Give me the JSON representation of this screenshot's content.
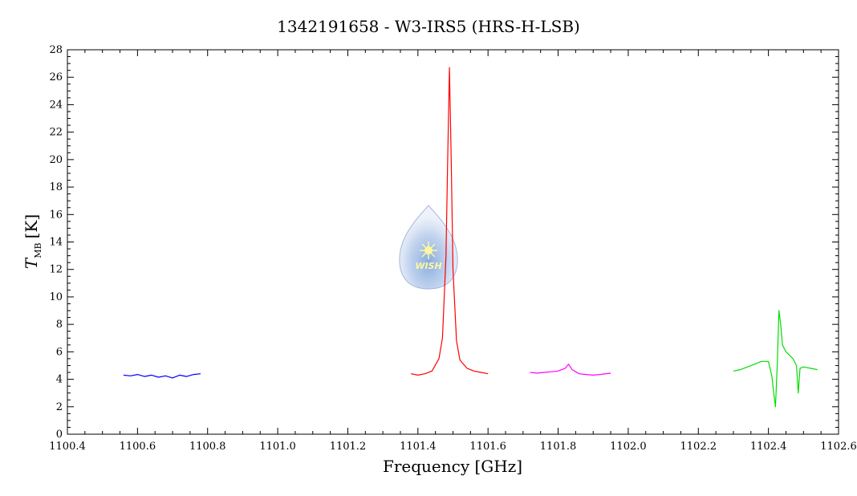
{
  "chart_data": {
    "type": "line",
    "title": "1342191658 - W3-IRS5 (HRS-H-LSB)",
    "xlabel": "Frequency [GHz]",
    "ylabel_main": "T",
    "ylabel_sub": "MB",
    "ylabel_unit": "[K]",
    "xlim": [
      1100.4,
      1102.6
    ],
    "ylim": [
      0,
      28
    ],
    "xticks": [
      1100.4,
      1100.6,
      1100.8,
      1101.0,
      1101.2,
      1101.4,
      1101.6,
      1101.8,
      1102.0,
      1102.2,
      1102.4,
      1102.6
    ],
    "xtick_labels": [
      "1100.4",
      "1100.6",
      "1100.8",
      "1101.0",
      "1101.2",
      "1101.4",
      "1101.6",
      "1101.8",
      "1102.0",
      "1102.2",
      "1102.4",
      "1102.6"
    ],
    "yticks": [
      0,
      2,
      4,
      6,
      8,
      10,
      12,
      14,
      16,
      18,
      20,
      22,
      24,
      26,
      28
    ],
    "ytick_labels": [
      "0",
      "2",
      "4",
      "6",
      "8",
      "10",
      "12",
      "14",
      "16",
      "18",
      "20",
      "22",
      "24",
      "26",
      "28"
    ],
    "grid": false,
    "series": [
      {
        "color": "#0000ff",
        "x": [
          1100.56,
          1100.58,
          1100.6,
          1100.62,
          1100.64,
          1100.66,
          1100.68,
          1100.7,
          1100.72,
          1100.74,
          1100.76,
          1100.78
        ],
        "y": [
          4.3,
          4.25,
          4.35,
          4.2,
          4.3,
          4.15,
          4.25,
          4.1,
          4.3,
          4.2,
          4.35,
          4.4
        ]
      },
      {
        "color": "#ff0000",
        "x": [
          1101.38,
          1101.4,
          1101.42,
          1101.44,
          1101.46,
          1101.47,
          1101.48,
          1101.485,
          1101.49,
          1101.495,
          1101.5,
          1101.51,
          1101.52,
          1101.54,
          1101.56,
          1101.58,
          1101.6
        ],
        "y": [
          4.4,
          4.3,
          4.4,
          4.6,
          5.5,
          7.0,
          13.0,
          20.0,
          26.7,
          20.0,
          12.0,
          6.8,
          5.4,
          4.8,
          4.6,
          4.5,
          4.4
        ]
      },
      {
        "color": "#ff00ff",
        "x": [
          1101.72,
          1101.74,
          1101.76,
          1101.78,
          1101.8,
          1101.82,
          1101.83,
          1101.84,
          1101.86,
          1101.88,
          1101.9,
          1101.92,
          1101.95
        ],
        "y": [
          4.5,
          4.45,
          4.5,
          4.55,
          4.6,
          4.8,
          5.1,
          4.7,
          4.4,
          4.35,
          4.3,
          4.35,
          4.45
        ]
      },
      {
        "color": "#00dd00",
        "x": [
          1102.3,
          1102.32,
          1102.34,
          1102.36,
          1102.38,
          1102.4,
          1102.41,
          1102.415,
          1102.42,
          1102.425,
          1102.43,
          1102.435,
          1102.44,
          1102.45,
          1102.47,
          1102.48,
          1102.485,
          1102.49,
          1102.5,
          1102.52,
          1102.54
        ],
        "y": [
          4.6,
          4.7,
          4.9,
          5.1,
          5.3,
          5.3,
          4.2,
          3.0,
          2.0,
          5.0,
          9.0,
          8.0,
          6.5,
          6.0,
          5.5,
          5.0,
          3.0,
          4.8,
          4.9,
          4.8,
          4.7
        ]
      }
    ],
    "watermark_label": "WISH"
  }
}
